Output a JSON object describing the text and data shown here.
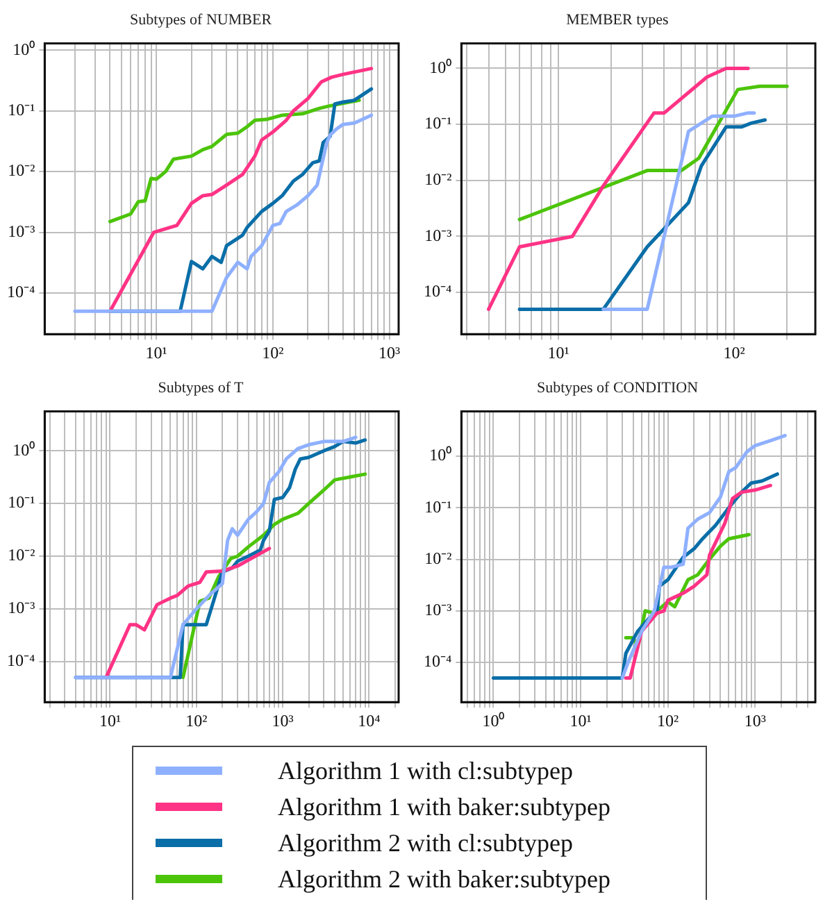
{
  "chart_data": [
    {
      "type": "line",
      "title": "Subtypes of NUMBER",
      "log": "xy",
      "grid": true,
      "legend": "bottom",
      "xlim": [
        1.1,
        1200
      ],
      "ylim": [
        2.1e-05,
        1.3
      ],
      "xticks": [
        {
          "value": 2,
          "label": null
        },
        {
          "value": 3,
          "label": null
        },
        {
          "value": 4,
          "label": null
        },
        {
          "value": 5,
          "label": null
        },
        {
          "value": 6,
          "label": null
        },
        {
          "value": 7,
          "label": null
        },
        {
          "value": 8,
          "label": null
        },
        {
          "value": 9,
          "label": null
        },
        {
          "value": 10,
          "label": "10¹"
        },
        {
          "value": 20,
          "label": null
        },
        {
          "value": 30,
          "label": null
        },
        {
          "value": 40,
          "label": null
        },
        {
          "value": 50,
          "label": null
        },
        {
          "value": 60,
          "label": null
        },
        {
          "value": 70,
          "label": null
        },
        {
          "value": 80,
          "label": null
        },
        {
          "value": 90,
          "label": null
        },
        {
          "value": 100,
          "label": "10²"
        },
        {
          "value": 200,
          "label": null
        },
        {
          "value": 300,
          "label": null
        },
        {
          "value": 400,
          "label": null
        },
        {
          "value": 500,
          "label": null
        },
        {
          "value": 600,
          "label": null
        },
        {
          "value": 700,
          "label": null
        },
        {
          "value": 800,
          "label": null
        },
        {
          "value": 900,
          "label": null
        },
        {
          "value": 1000,
          "label": "10³"
        }
      ],
      "yticks": [
        {
          "value": 0.0001,
          "label": "10⁻⁴"
        },
        {
          "value": 0.001,
          "label": "10⁻³"
        },
        {
          "value": 0.01,
          "label": "10⁻²"
        },
        {
          "value": 0.1,
          "label": "10⁻¹"
        },
        {
          "value": 1,
          "label": "10⁰"
        }
      ],
      "series": [
        {
          "name": "Algorithm 1 with cl:subtypep",
          "color": "#8fb0ff",
          "x": [
            2,
            30,
            40,
            50,
            60,
            65,
            80,
            100,
            115,
            130,
            160,
            200,
            240,
            260,
            290,
            310,
            350,
            400,
            500,
            700
          ],
          "values": [
            5e-05,
            5e-05,
            0.00018,
            0.00032,
            0.00025,
            0.0004,
            0.0006,
            0.0013,
            0.0014,
            0.0022,
            0.0028,
            0.004,
            0.006,
            0.012,
            0.03,
            0.04,
            0.05,
            0.06,
            0.063,
            0.085
          ]
        },
        {
          "name": "Algorithm 1 with baker:subtypep",
          "color": "#ff3385",
          "x": [
            4,
            9.5,
            15,
            20,
            25,
            30,
            40,
            55,
            70,
            80,
            100,
            130,
            150,
            200,
            260,
            320,
            400,
            700
          ],
          "values": [
            5e-05,
            0.001,
            0.0013,
            0.003,
            0.004,
            0.0042,
            0.006,
            0.009,
            0.018,
            0.033,
            0.045,
            0.07,
            0.1,
            0.16,
            0.3,
            0.36,
            0.4,
            0.5
          ]
        },
        {
          "name": "Algorithm 2 with cl:subtypep",
          "color": "#0a6ea8",
          "x": [
            4,
            16,
            20,
            25,
            30,
            36,
            40,
            55,
            60,
            80,
            100,
            120,
            150,
            180,
            220,
            250,
            270,
            310,
            340,
            400,
            500,
            700
          ],
          "values": [
            5e-05,
            5e-05,
            0.00033,
            0.00025,
            0.0004,
            0.00032,
            0.0006,
            0.0009,
            0.0012,
            0.0022,
            0.003,
            0.004,
            0.007,
            0.009,
            0.014,
            0.015,
            0.03,
            0.038,
            0.13,
            0.14,
            0.15,
            0.23
          ]
        },
        {
          "name": "Algorithm 2 with baker:subtypep",
          "color": "#4cc40a",
          "x": [
            4,
            6,
            7,
            8,
            9,
            10,
            12,
            14,
            20,
            25,
            30,
            40,
            50,
            60,
            70,
            90,
            120,
            180,
            250,
            300,
            550
          ],
          "values": [
            0.0015,
            0.002,
            0.0032,
            0.0033,
            0.0077,
            0.0075,
            0.01,
            0.016,
            0.018,
            0.023,
            0.026,
            0.041,
            0.043,
            0.055,
            0.07,
            0.073,
            0.085,
            0.09,
            0.11,
            0.12,
            0.15
          ]
        }
      ]
    },
    {
      "type": "line",
      "title": "MEMBER types",
      "log": "xy",
      "grid": true,
      "xlim": [
        2.8,
        290
      ],
      "ylim": [
        1.8e-05,
        2.8
      ],
      "xticks": [
        {
          "value": 3,
          "label": null
        },
        {
          "value": 4,
          "label": null
        },
        {
          "value": 5,
          "label": null
        },
        {
          "value": 6,
          "label": null
        },
        {
          "value": 7,
          "label": null
        },
        {
          "value": 8,
          "label": null
        },
        {
          "value": 9,
          "label": null
        },
        {
          "value": 10,
          "label": "10¹"
        },
        {
          "value": 20,
          "label": null
        },
        {
          "value": 30,
          "label": null
        },
        {
          "value": 40,
          "label": null
        },
        {
          "value": 50,
          "label": null
        },
        {
          "value": 60,
          "label": null
        },
        {
          "value": 70,
          "label": null
        },
        {
          "value": 80,
          "label": null
        },
        {
          "value": 90,
          "label": null
        },
        {
          "value": 100,
          "label": "10²"
        },
        {
          "value": 200,
          "label": null
        }
      ],
      "yticks": [
        {
          "value": 0.0001,
          "label": "10⁻⁴"
        },
        {
          "value": 0.001,
          "label": "10⁻³"
        },
        {
          "value": 0.01,
          "label": "10⁻²"
        },
        {
          "value": 0.1,
          "label": "10⁻¹"
        },
        {
          "value": 1,
          "label": "10⁰"
        }
      ],
      "series": [
        {
          "color": "#8fb0ff",
          "x": [
            18,
            32,
            55,
            75,
            100,
            120,
            130
          ],
          "values": [
            5e-05,
            5e-05,
            0.075,
            0.14,
            0.14,
            0.16,
            0.16
          ]
        },
        {
          "color": "#ff3385",
          "x": [
            4,
            6,
            12,
            18,
            35,
            40,
            70,
            90,
            120
          ],
          "values": [
            5e-05,
            0.00065,
            0.001,
            0.008,
            0.16,
            0.16,
            0.7,
            1,
            1
          ]
        },
        {
          "color": "#0a6ea8",
          "x": [
            6,
            18,
            32,
            55,
            65,
            90,
            110,
            125,
            150
          ],
          "values": [
            5e-05,
            5e-05,
            0.00065,
            0.004,
            0.018,
            0.09,
            0.09,
            0.105,
            0.12
          ]
        },
        {
          "color": "#4cc40a",
          "x": [
            6,
            32,
            50,
            63,
            105,
            140,
            200
          ],
          "values": [
            0.002,
            0.015,
            0.015,
            0.025,
            0.42,
            0.48,
            0.48
          ]
        }
      ]
    },
    {
      "type": "line",
      "title": "Subtypes of T",
      "log": "xy",
      "grid": true,
      "xlim": [
        1.75,
        22000
      ],
      "ylim": [
        1.7e-05,
        5.6
      ],
      "xticks": [
        {
          "value": 2,
          "label": null
        },
        {
          "value": 3,
          "label": null
        },
        {
          "value": 4,
          "label": null
        },
        {
          "value": 5,
          "label": null
        },
        {
          "value": 6,
          "label": null
        },
        {
          "value": 7,
          "label": null
        },
        {
          "value": 8,
          "label": null
        },
        {
          "value": 9,
          "label": null
        },
        {
          "value": 10,
          "label": "10¹"
        },
        {
          "value": 20,
          "label": null
        },
        {
          "value": 30,
          "label": null
        },
        {
          "value": 40,
          "label": null
        },
        {
          "value": 50,
          "label": null
        },
        {
          "value": 60,
          "label": null
        },
        {
          "value": 70,
          "label": null
        },
        {
          "value": 80,
          "label": null
        },
        {
          "value": 90,
          "label": null
        },
        {
          "value": 100,
          "label": "10²"
        },
        {
          "value": 200,
          "label": null
        },
        {
          "value": 300,
          "label": null
        },
        {
          "value": 400,
          "label": null
        },
        {
          "value": 500,
          "label": null
        },
        {
          "value": 600,
          "label": null
        },
        {
          "value": 700,
          "label": null
        },
        {
          "value": 800,
          "label": null
        },
        {
          "value": 900,
          "label": null
        },
        {
          "value": 1000,
          "label": "10³"
        },
        {
          "value": 2000,
          "label": null
        },
        {
          "value": 3000,
          "label": null
        },
        {
          "value": 4000,
          "label": null
        },
        {
          "value": 5000,
          "label": null
        },
        {
          "value": 6000,
          "label": null
        },
        {
          "value": 7000,
          "label": null
        },
        {
          "value": 8000,
          "label": null
        },
        {
          "value": 9000,
          "label": null
        },
        {
          "value": 10000,
          "label": "10⁴"
        },
        {
          "value": 20000,
          "label": null
        }
      ],
      "yticks": [
        {
          "value": 0.0001,
          "label": "10⁻⁴"
        },
        {
          "value": 0.001,
          "label": "10⁻³"
        },
        {
          "value": 0.01,
          "label": "10⁻²"
        },
        {
          "value": 0.1,
          "label": "10⁻¹"
        },
        {
          "value": 1,
          "label": "10⁰"
        }
      ],
      "series": [
        {
          "color": "#8fb0ff",
          "x": [
            4,
            50,
            70,
            100,
            150,
            200,
            230,
            260,
            300,
            400,
            500,
            600,
            700,
            900,
            1100,
            1500,
            2000,
            3000,
            5000,
            7000
          ],
          "values": [
            5e-05,
            5e-05,
            0.0005,
            0.001,
            0.002,
            0.003,
            0.02,
            0.033,
            0.025,
            0.05,
            0.07,
            0.1,
            0.25,
            0.4,
            0.7,
            1.1,
            1.3,
            1.5,
            1.5,
            1.8
          ]
        },
        {
          "color": "#ff3385",
          "x": [
            9,
            17,
            20,
            25,
            35,
            50,
            60,
            80,
            110,
            130,
            200,
            300,
            700
          ],
          "values": [
            5e-05,
            0.0005,
            0.0005,
            0.0004,
            0.0012,
            0.0016,
            0.0018,
            0.0027,
            0.0032,
            0.005,
            0.0052,
            0.0065,
            0.014
          ]
        },
        {
          "color": "#0a6ea8",
          "x": [
            4,
            65,
            70,
            130,
            160,
            200,
            260,
            300,
            400,
            550,
            600,
            700,
            800,
            1000,
            1200,
            1400,
            1600,
            2000,
            3000,
            4000,
            5000,
            7000,
            9000
          ],
          "values": [
            5e-05,
            5e-05,
            0.0005,
            0.0005,
            0.0015,
            0.005,
            0.006,
            0.008,
            0.01,
            0.013,
            0.02,
            0.03,
            0.12,
            0.13,
            0.2,
            0.45,
            0.7,
            0.75,
            1,
            1.2,
            1.5,
            1.4,
            1.6
          ]
        },
        {
          "color": "#4cc40a",
          "x": [
            70,
            110,
            140,
            180,
            250,
            300,
            400,
            600,
            800,
            1000,
            1500,
            2000,
            3000,
            4000,
            9000
          ],
          "values": [
            5e-05,
            0.0014,
            0.0016,
            0.004,
            0.009,
            0.01,
            0.015,
            0.025,
            0.04,
            0.05,
            0.065,
            0.1,
            0.18,
            0.28,
            0.36
          ]
        }
      ]
    },
    {
      "type": "line",
      "title": "Subtypes of CONDITION",
      "log": "xy",
      "grid": true,
      "xlim": [
        0.43,
        4900
      ],
      "ylim": [
        1.7e-05,
        7.4
      ],
      "xticks": [
        {
          "value": 0.5,
          "label": null
        },
        {
          "value": 0.6,
          "label": null
        },
        {
          "value": 0.7,
          "label": null
        },
        {
          "value": 0.8,
          "label": null
        },
        {
          "value": 0.9,
          "label": null
        },
        {
          "value": 1,
          "label": "10⁰"
        },
        {
          "value": 2,
          "label": null
        },
        {
          "value": 3,
          "label": null
        },
        {
          "value": 4,
          "label": null
        },
        {
          "value": 5,
          "label": null
        },
        {
          "value": 6,
          "label": null
        },
        {
          "value": 7,
          "label": null
        },
        {
          "value": 8,
          "label": null
        },
        {
          "value": 9,
          "label": null
        },
        {
          "value": 10,
          "label": "10¹"
        },
        {
          "value": 20,
          "label": null
        },
        {
          "value": 30,
          "label": null
        },
        {
          "value": 40,
          "label": null
        },
        {
          "value": 50,
          "label": null
        },
        {
          "value": 60,
          "label": null
        },
        {
          "value": 70,
          "label": null
        },
        {
          "value": 80,
          "label": null
        },
        {
          "value": 90,
          "label": null
        },
        {
          "value": 100,
          "label": "10²"
        },
        {
          "value": 200,
          "label": null
        },
        {
          "value": 300,
          "label": null
        },
        {
          "value": 400,
          "label": null
        },
        {
          "value": 500,
          "label": null
        },
        {
          "value": 600,
          "label": null
        },
        {
          "value": 700,
          "label": null
        },
        {
          "value": 800,
          "label": null
        },
        {
          "value": 900,
          "label": null
        },
        {
          "value": 1000,
          "label": "10³"
        },
        {
          "value": 2000,
          "label": null
        },
        {
          "value": 3000,
          "label": null
        },
        {
          "value": 4000,
          "label": null
        }
      ],
      "yticks": [
        {
          "value": 0.0001,
          "label": "10⁻⁴"
        },
        {
          "value": 0.001,
          "label": "10⁻³"
        },
        {
          "value": 0.01,
          "label": "10⁻²"
        },
        {
          "value": 0.1,
          "label": "10⁻¹"
        },
        {
          "value": 1,
          "label": "10⁰"
        }
      ],
      "series": [
        {
          "color": "#8fb0ff",
          "x": [
            30,
            35,
            50,
            70,
            90,
            110,
            150,
            170,
            220,
            300,
            400,
            500,
            600,
            800,
            1000,
            1500,
            2200
          ],
          "values": [
            5e-05,
            0.0001,
            0.0004,
            0.001,
            0.007,
            0.007,
            0.008,
            0.04,
            0.06,
            0.08,
            0.16,
            0.5,
            0.6,
            1.2,
            1.6,
            2,
            2.5
          ]
        },
        {
          "color": "#ff3385",
          "x": [
            33,
            37,
            50,
            75,
            90,
            100,
            150,
            200,
            280,
            300,
            450,
            550,
            700,
            1000,
            1500
          ],
          "values": [
            5e-05,
            5e-05,
            0.0004,
            0.0009,
            0.001,
            0.0016,
            0.0022,
            0.003,
            0.005,
            0.012,
            0.05,
            0.15,
            0.2,
            0.22,
            0.27
          ]
        },
        {
          "color": "#0a6ea8",
          "x": [
            1,
            30,
            33,
            45,
            60,
            75,
            80,
            100,
            150,
            200,
            250,
            350,
            500,
            700,
            900,
            1200,
            1800
          ],
          "values": [
            5e-05,
            5e-05,
            0.00015,
            0.0004,
            0.0007,
            0.0009,
            0.003,
            0.004,
            0.011,
            0.016,
            0.025,
            0.045,
            0.1,
            0.2,
            0.3,
            0.33,
            0.45
          ]
        },
        {
          "color": "#4cc40a",
          "x": [
            33,
            40,
            45,
            55,
            70,
            100,
            120,
            170,
            220,
            300,
            400,
            500,
            850
          ],
          "values": [
            0.0003,
            0.0003,
            0.0002,
            0.001,
            0.0009,
            0.0015,
            0.0012,
            0.004,
            0.005,
            0.01,
            0.018,
            0.025,
            0.03
          ]
        }
      ]
    }
  ]
}
